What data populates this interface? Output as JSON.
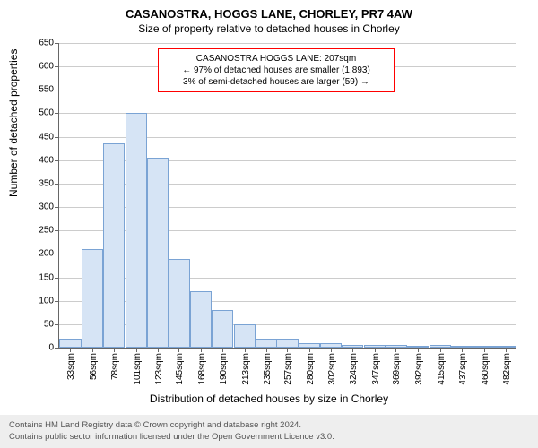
{
  "title": "CASANOSTRA, HOGGS LANE, CHORLEY, PR7 4AW",
  "subtitle": "Size of property relative to detached houses in Chorley",
  "ylabel": "Number of detached properties",
  "xlabel": "Distribution of detached houses by size in Chorley",
  "chart": {
    "type": "histogram",
    "x_unit": "sqm",
    "ylim": [
      0,
      650
    ],
    "ytick_step": 50,
    "bar_fill": "#d6e4f5",
    "bar_border": "#7aa3d4",
    "grid_color": "#cccccc",
    "background_color": "#ffffff",
    "reference_line": {
      "x": 207,
      "color": "#ff0000"
    },
    "categories": [
      33,
      56,
      78,
      101,
      123,
      145,
      168,
      190,
      213,
      235,
      257,
      280,
      302,
      324,
      347,
      369,
      392,
      415,
      437,
      460,
      482
    ],
    "values": [
      20,
      210,
      435,
      500,
      405,
      190,
      120,
      80,
      50,
      20,
      20,
      10,
      10,
      5,
      5,
      5,
      3,
      5,
      3,
      3,
      3
    ]
  },
  "annotation": {
    "line1": "CASANOSTRA HOGGS LANE: 207sqm",
    "line2": "← 97% of detached houses are smaller (1,893)",
    "line3": "3% of semi-detached houses are larger (59) →",
    "border_color": "#ff0000",
    "fontsize": 10
  },
  "footer": {
    "line1": "Contains HM Land Registry data © Crown copyright and database right 2024.",
    "line2": "Contains public sector information licensed under the Open Government Licence v3.0.",
    "background_color": "#eeeeee"
  }
}
